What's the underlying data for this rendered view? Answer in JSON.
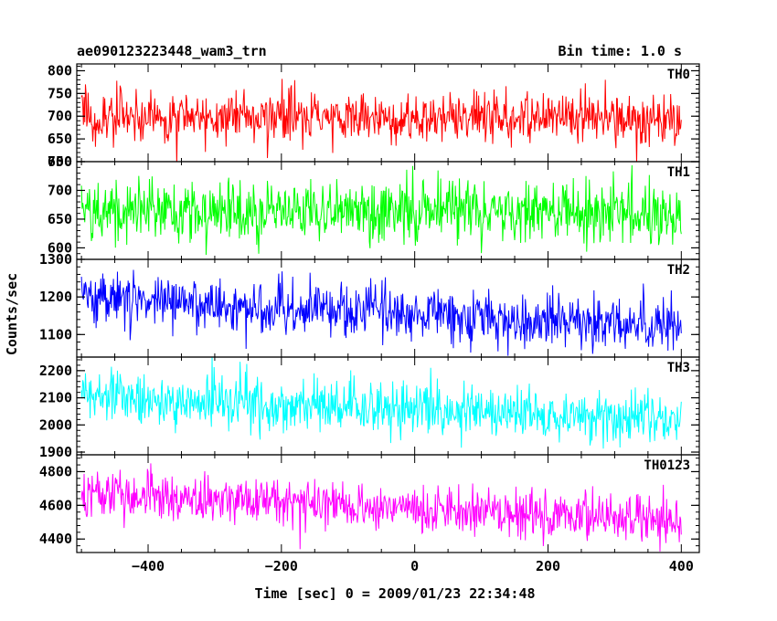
{
  "chart_data": {
    "type": "line",
    "title": "ae090123223448_wam3_trn",
    "subtitle": "Bin time: 1.0 s",
    "xlabel": "Time [sec] 0 = 2009/01/23 22:34:48",
    "ylabel": "Counts/sec",
    "xlim": [
      -507,
      427
    ],
    "x_range": [
      -500,
      400
    ],
    "bin_time": 1.0,
    "x_ticks": [
      -400,
      -200,
      0,
      200,
      400
    ],
    "x_tick_labels": [
      "−400",
      "−200",
      "0",
      "200",
      "400"
    ],
    "grid": false,
    "panels": [
      {
        "name": "TH0",
        "color": "#ff0000",
        "ylim": [
          600,
          815
        ],
        "y_ticks": [
          600,
          650,
          700,
          750,
          800
        ],
        "y_tick_labels": [
          "600",
          "650",
          "700",
          "750",
          "800"
        ],
        "trend": {
          "start": 700,
          "end": 695
        },
        "noise_sd": 27
      },
      {
        "name": "TH1",
        "color": "#00ff00",
        "ylim": [
          580,
          750
        ],
        "y_ticks": [
          600,
          650,
          700,
          750
        ],
        "y_tick_labels": [
          "600",
          "650",
          "700",
          "750"
        ],
        "trend": {
          "start": 665,
          "end": 660
        },
        "noise_sd": 27
      },
      {
        "name": "TH2",
        "color": "#0000ff",
        "ylim": [
          1040,
          1300
        ],
        "y_ticks": [
          1100,
          1200,
          1300
        ],
        "y_tick_labels": [
          "1100",
          "1200",
          "1300"
        ],
        "trend": {
          "start": 1200,
          "end": 1120
        },
        "noise_sd": 36
      },
      {
        "name": "TH3",
        "color": "#00ffff",
        "ylim": [
          1890,
          2250
        ],
        "y_ticks": [
          1900,
          2000,
          2100,
          2200
        ],
        "y_tick_labels": [
          "1900",
          "2000",
          "2100",
          "2200"
        ],
        "trend": {
          "start": 2110,
          "end": 2020
        },
        "noise_sd": 45
      },
      {
        "name": "TH0123",
        "color": "#ff00ff",
        "ylim": [
          4320,
          4900
        ],
        "y_ticks": [
          4400,
          4600,
          4800
        ],
        "y_tick_labels": [
          "4400",
          "4600",
          "4800"
        ],
        "trend": {
          "start": 4680,
          "end": 4500
        },
        "noise_sd": 72
      }
    ]
  }
}
